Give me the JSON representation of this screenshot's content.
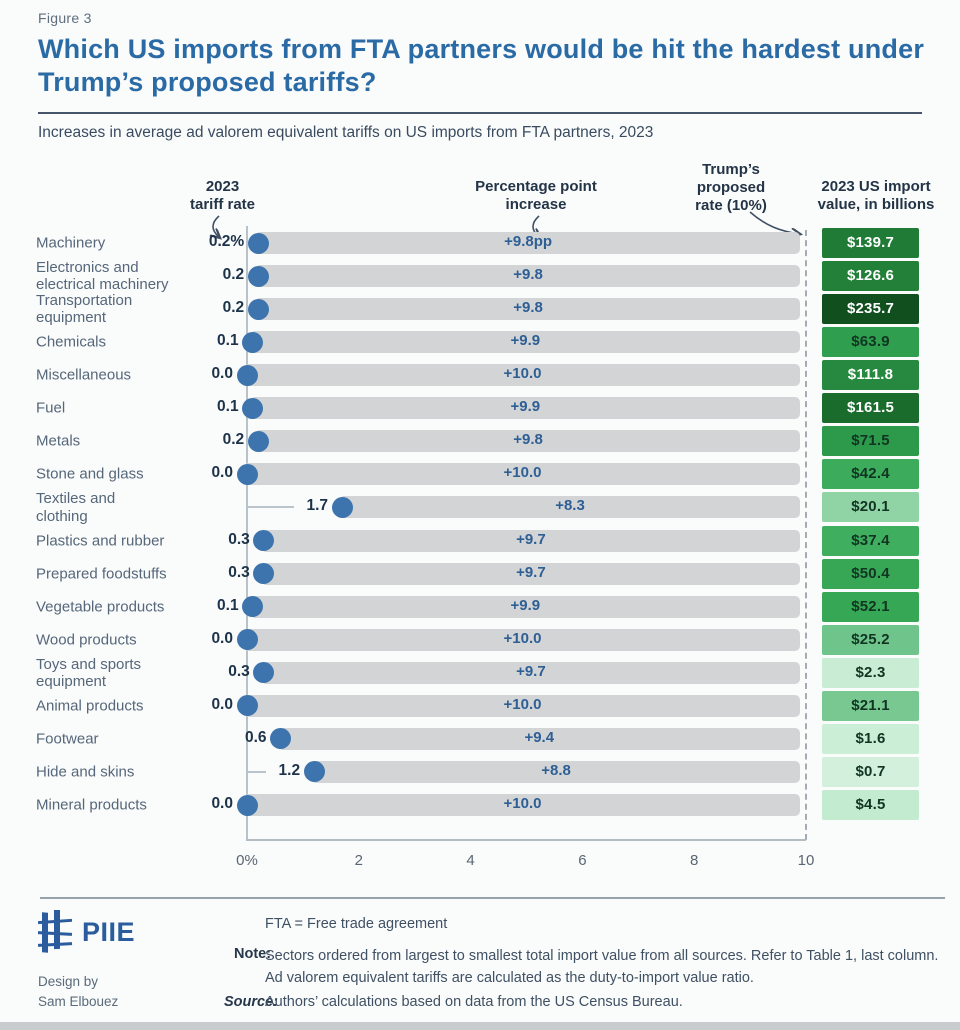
{
  "page": {
    "figure_label": "Figure 3",
    "title": "Which US imports from FTA partners would be hit the hardest under Trump’s proposed tariffs?",
    "subtitle": "Increases in average ad valorem equivalent tariffs on US imports from FTA partners, 2023"
  },
  "chart_data": {
    "type": "bar",
    "title": "Which US imports from FTA partners would be hit the hardest under Trump’s proposed tariffs?",
    "subtitle": "Increases in average ad valorem equivalent tariffs on US imports from FTA partners, 2023",
    "headers": {
      "tariff": "2023\ntariff rate",
      "increase": "Percentage point\nincrease",
      "proposed": "Trump’s\nproposed\nrate (10%)",
      "import_value": "2023 US import\nvalue, in billions"
    },
    "proposed_rate_percent": 10,
    "x_axis": {
      "range": [
        0,
        10
      ],
      "tick_values": [
        0,
        2,
        4,
        6,
        8,
        10
      ],
      "tick_labels": [
        "0%",
        "2",
        "4",
        "6",
        "8",
        "10"
      ]
    },
    "colors": {
      "bar_track": "#d3d4d6",
      "dot": "#3d74ad",
      "increase_text": "#2d5f95",
      "accent_blue": "#2a6aa5"
    },
    "rows": [
      {
        "label": "Machinery",
        "tariff_rate": 0.2,
        "tariff_rate_label": "0.2%",
        "increase": 9.8,
        "increase_label": "+9.8pp",
        "import_value": 139.7,
        "import_value_label": "$139.7",
        "box_color": "#1f7b35",
        "box_text_color": "#ffffff"
      },
      {
        "label": "Electronics and\nelectrical machinery",
        "tariff_rate": 0.2,
        "tariff_rate_label": "0.2",
        "increase": 9.8,
        "increase_label": "+9.8",
        "import_value": 126.6,
        "import_value_label": "$126.6",
        "box_color": "#228038",
        "box_text_color": "#ffffff"
      },
      {
        "label": "Transportation\nequipment",
        "tariff_rate": 0.2,
        "tariff_rate_label": "0.2",
        "increase": 9.8,
        "increase_label": "+9.8",
        "import_value": 235.7,
        "import_value_label": "$235.7",
        "box_color": "#124f1f",
        "box_text_color": "#ffffff"
      },
      {
        "label": "Chemicals",
        "tariff_rate": 0.1,
        "tariff_rate_label": "0.1",
        "increase": 9.9,
        "increase_label": "+9.9",
        "import_value": 63.9,
        "import_value_label": "$63.9",
        "box_color": "#2f9e4e",
        "box_text_color": "#113522"
      },
      {
        "label": "Miscellaneous",
        "tariff_rate": 0.0,
        "tariff_rate_label": "0.0",
        "increase": 10.0,
        "increase_label": "+10.0",
        "import_value": 111.8,
        "import_value_label": "$111.8",
        "box_color": "#27893f",
        "box_text_color": "#ffffff"
      },
      {
        "label": "Fuel",
        "tariff_rate": 0.1,
        "tariff_rate_label": "0.1",
        "increase": 9.9,
        "increase_label": "+9.9",
        "import_value": 161.5,
        "import_value_label": "$161.5",
        "box_color": "#1a6c2c",
        "box_text_color": "#ffffff"
      },
      {
        "label": "Metals",
        "tariff_rate": 0.2,
        "tariff_rate_label": "0.2",
        "increase": 9.8,
        "increase_label": "+9.8",
        "import_value": 71.5,
        "import_value_label": "$71.5",
        "box_color": "#2d9a4b",
        "box_text_color": "#113522"
      },
      {
        "label": "Stone and glass",
        "tariff_rate": 0.0,
        "tariff_rate_label": "0.0",
        "increase": 10.0,
        "increase_label": "+10.0",
        "import_value": 42.4,
        "import_value_label": "$42.4",
        "box_color": "#3cab5b",
        "box_text_color": "#113522"
      },
      {
        "label": "Textiles and\nclothing",
        "tariff_rate": 1.7,
        "tariff_rate_label": "1.7",
        "increase": 8.3,
        "increase_label": "+8.3",
        "import_value": 20.1,
        "import_value_label": "$20.1",
        "box_color": "#90d4a6",
        "box_text_color": "#113522"
      },
      {
        "label": "Plastics and rubber",
        "tariff_rate": 0.3,
        "tariff_rate_label": "0.3",
        "increase": 9.7,
        "increase_label": "+9.7",
        "import_value": 37.4,
        "import_value_label": "$37.4",
        "box_color": "#40ae5f",
        "box_text_color": "#113522"
      },
      {
        "label": "Prepared foodstuffs",
        "tariff_rate": 0.3,
        "tariff_rate_label": "0.3",
        "increase": 9.7,
        "increase_label": "+9.7",
        "import_value": 50.4,
        "import_value_label": "$50.4",
        "box_color": "#37a756",
        "box_text_color": "#113522"
      },
      {
        "label": "Vegetable products",
        "tariff_rate": 0.1,
        "tariff_rate_label": "0.1",
        "increase": 9.9,
        "increase_label": "+9.9",
        "import_value": 52.1,
        "import_value_label": "$52.1",
        "box_color": "#36a755",
        "box_text_color": "#113522"
      },
      {
        "label": "Wood products",
        "tariff_rate": 0.0,
        "tariff_rate_label": "0.0",
        "increase": 10.0,
        "increase_label": "+10.0",
        "import_value": 25.2,
        "import_value_label": "$25.2",
        "box_color": "#6fc48b",
        "box_text_color": "#113522"
      },
      {
        "label": "Toys and sports\nequipment",
        "tariff_rate": 0.3,
        "tariff_rate_label": "0.3",
        "increase": 9.7,
        "increase_label": "+9.7",
        "import_value": 2.3,
        "import_value_label": "$2.3",
        "box_color": "#c8edd4",
        "box_text_color": "#113522"
      },
      {
        "label": "Animal products",
        "tariff_rate": 0.0,
        "tariff_rate_label": "0.0",
        "increase": 10.0,
        "increase_label": "+10.0",
        "import_value": 21.1,
        "import_value_label": "$21.1",
        "box_color": "#79c892",
        "box_text_color": "#113522"
      },
      {
        "label": "Footwear",
        "tariff_rate": 0.6,
        "tariff_rate_label": "0.6",
        "increase": 9.4,
        "increase_label": "+9.4",
        "import_value": 1.6,
        "import_value_label": "$1.6",
        "box_color": "#cbeed7",
        "box_text_color": "#113522"
      },
      {
        "label": "Hide and skins",
        "tariff_rate": 1.2,
        "tariff_rate_label": "1.2",
        "increase": 8.8,
        "increase_label": "+8.8",
        "import_value": 0.7,
        "import_value_label": "$0.7",
        "box_color": "#d2f0db",
        "box_text_color": "#113522"
      },
      {
        "label": "Mineral products",
        "tariff_rate": 0.0,
        "tariff_rate_label": "0.0",
        "increase": 10.0,
        "increase_label": "+10.0",
        "import_value": 4.5,
        "import_value_label": "$4.5",
        "box_color": "#c2ebd0",
        "box_text_color": "#113522"
      }
    ]
  },
  "footer": {
    "logo_text": "PIIE",
    "design_by": "Design by\nSam Elbouez",
    "fta_line": "FTA = Free trade agreement",
    "note_label": "Note:",
    "note_text": "Sectors ordered from largest to smallest total import value from all sources. Refer to Table 1, last column. Ad valorem equivalent tariffs are calculated as the duty-to-import value ratio.",
    "source_label": "Source:",
    "source_text": "Authors’ calculations based on data from the US Census Bureau."
  }
}
